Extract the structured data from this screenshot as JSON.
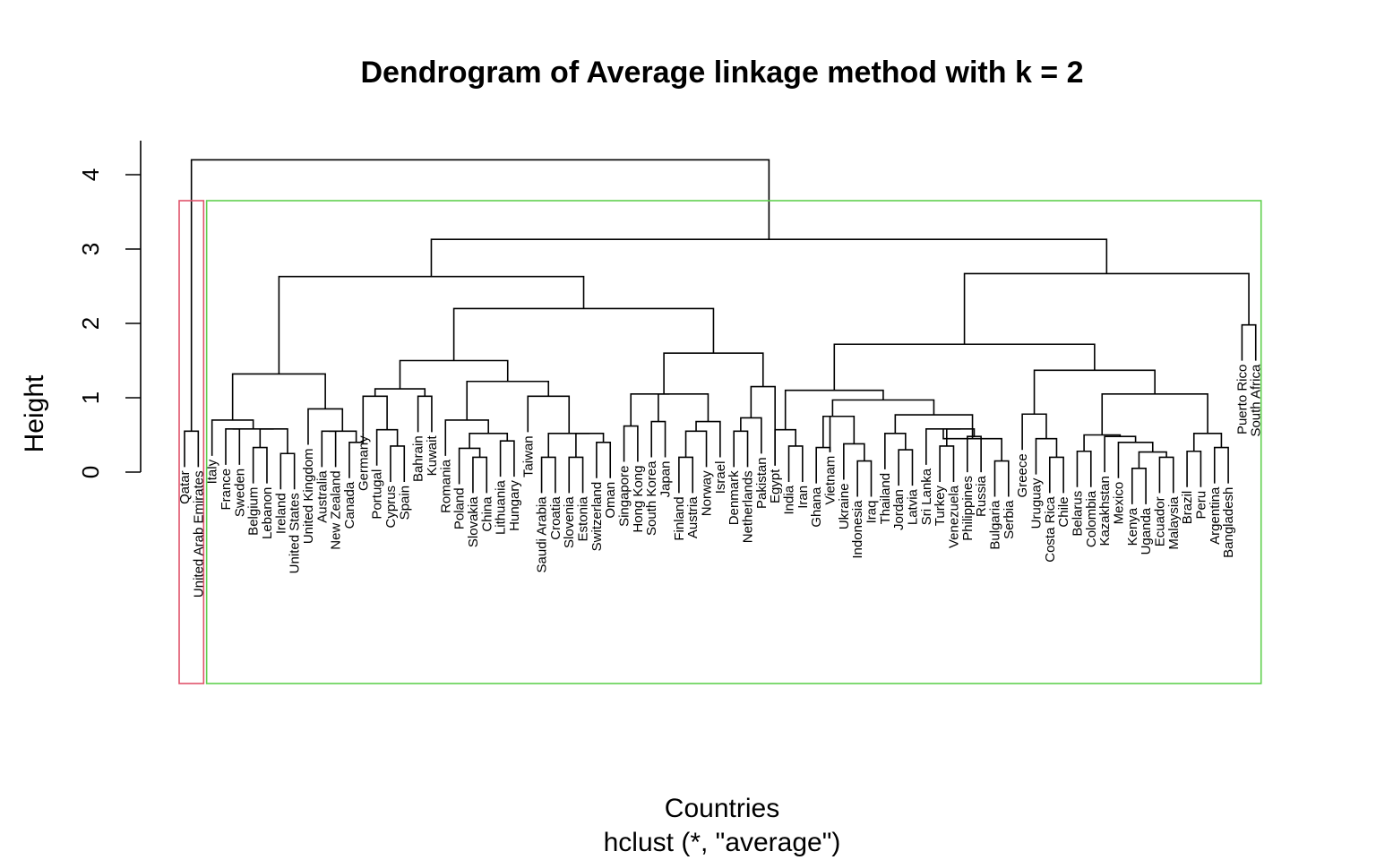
{
  "chart_data": {
    "type": "dendrogram",
    "title": "Dendrogram of Average linkage method with k = 2",
    "xlabel": "Countries",
    "subtitle": "hclust (*, \"average\")",
    "ylabel": "Height",
    "ylim": [
      0,
      4.2
    ],
    "yticks": [
      0,
      1,
      2,
      3,
      4
    ],
    "clusters": {
      "k": 2,
      "colors": [
        "#DF536B",
        "#61D04F"
      ]
    },
    "leaves": [
      "Qatar",
      "United Arab Emirates",
      "Italy",
      "France",
      "Sweden",
      "Belgium",
      "Lebanon",
      "Ireland",
      "United States",
      "United Kingdom",
      "Australia",
      "New Zealand",
      "Canada",
      "Germany",
      "Portugal",
      "Cyprus",
      "Spain",
      "Bahrain",
      "Kuwait",
      "Romania",
      "Poland",
      "Slovakia",
      "China",
      "Lithuania",
      "Hungary",
      "Taiwan",
      "Saudi Arabia",
      "Croatia",
      "Slovenia",
      "Estonia",
      "Switzerland",
      "Oman",
      "Singapore",
      "Hong Kong",
      "South Korea",
      "Japan",
      "Finland",
      "Austria",
      "Norway",
      "Israel",
      "Denmark",
      "Netherlands",
      "Pakistan",
      "Egypt",
      "India",
      "Iran",
      "Ghana",
      "Vietnam",
      "Ukraine",
      "Indonesia",
      "Iraq",
      "Thailand",
      "Jordan",
      "Latvia",
      "Sri Lanka",
      "Turkey",
      "Venezuela",
      "Philippines",
      "Russia",
      "Bulgaria",
      "Serbia",
      "Greece",
      "Uruguay",
      "Costa Rica",
      "Chile",
      "Belarus",
      "Colombia",
      "Kazakhstan",
      "Mexico",
      "Kenya",
      "Uganda",
      "Ecuador",
      "Malaysia",
      "Brazil",
      "Peru",
      "Argentina",
      "Bangladesh",
      "Puerto Rico",
      "South Africa"
    ],
    "merges": [
      [
        -1,
        -2,
        0.55
      ],
      [
        -4,
        -5,
        0.58
      ],
      [
        -6,
        -7,
        0.33
      ],
      [
        -8,
        -9,
        0.25
      ],
      [
        3,
        4,
        0.58
      ],
      [
        2,
        5,
        0.58
      ],
      [
        -3,
        6,
        0.7
      ],
      [
        -11,
        -12,
        0.55
      ],
      [
        -13,
        -14,
        0.4
      ],
      [
        8,
        9,
        0.55
      ],
      [
        -10,
        10,
        0.85
      ],
      [
        7,
        11,
        1.32
      ],
      [
        -16,
        -17,
        0.35
      ],
      [
        -15,
        13,
        0.57
      ],
      [
        -14,
        14,
        1.02
      ],
      [
        -18,
        -19,
        1.02
      ],
      [
        15,
        16,
        1.12
      ],
      [
        -22,
        -23,
        0.2
      ],
      [
        -21,
        18,
        0.32
      ],
      [
        -24,
        -25,
        0.42
      ],
      [
        19,
        20,
        0.52
      ],
      [
        -20,
        21,
        0.7
      ],
      [
        -27,
        -28,
        0.2
      ],
      [
        -29,
        -30,
        0.2
      ],
      [
        -31,
        -32,
        0.4
      ],
      [
        24,
        25,
        0.52
      ],
      [
        23,
        26,
        0.52
      ],
      [
        -26,
        27,
        1.02
      ],
      [
        22,
        28,
        1.22
      ],
      [
        17,
        29,
        1.5
      ],
      [
        -33,
        -34,
        0.62
      ],
      [
        -35,
        -36,
        0.68
      ],
      [
        -37,
        -38,
        0.2
      ],
      [
        -39,
        33,
        0.55
      ],
      [
        -40,
        34,
        0.68
      ],
      [
        31,
        35,
        1.05
      ],
      [
        32,
        36,
        1.05
      ],
      [
        -41,
        -42,
        0.55
      ],
      [
        -43,
        38,
        0.73
      ],
      [
        -44,
        39,
        1.15
      ],
      [
        37,
        40,
        1.6
      ],
      [
        30,
        41,
        2.2
      ],
      [
        12,
        42,
        2.63
      ],
      [
        -45,
        -46,
        0.35
      ],
      [
        -44,
        44,
        0.57
      ],
      [
        -47,
        -48,
        0.33
      ],
      [
        -50,
        -51,
        0.15
      ],
      [
        -49,
        47,
        0.38
      ],
      [
        -48,
        48,
        0.75
      ],
      [
        46,
        49,
        0.75
      ],
      [
        -53,
        -54,
        0.3
      ],
      [
        -52,
        51,
        0.52
      ],
      [
        -56,
        -57,
        0.35
      ],
      [
        -58,
        -59,
        0.48
      ],
      [
        53,
        54,
        0.58
      ],
      [
        -55,
        55,
        0.58
      ],
      [
        -60,
        -61,
        0.15
      ],
      [
        56,
        57,
        0.45
      ],
      [
        52,
        58,
        0.77
      ],
      [
        50,
        59,
        0.97
      ],
      [
        45,
        60,
        1.1
      ],
      [
        -64,
        -65,
        0.2
      ],
      [
        -63,
        62,
        0.45
      ],
      [
        -62,
        63,
        0.78
      ],
      [
        -66,
        -67,
        0.28
      ],
      [
        -70,
        -71,
        0.05
      ],
      [
        -72,
        -73,
        0.2
      ],
      [
        66,
        67,
        0.27
      ],
      [
        -69,
        68,
        0.4
      ],
      [
        -68,
        69,
        0.48
      ],
      [
        65,
        70,
        0.5
      ],
      [
        -74,
        -75,
        0.28
      ],
      [
        -76,
        -77,
        0.33
      ],
      [
        72,
        73,
        0.52
      ],
      [
        71,
        74,
        1.05
      ],
      [
        64,
        75,
        1.37
      ],
      [
        61,
        76,
        1.72
      ],
      [
        -78,
        -79,
        1.98
      ],
      [
        77,
        78,
        2.67
      ],
      [
        43,
        79,
        3.13
      ],
      [
        1,
        80,
        4.2
      ]
    ]
  }
}
